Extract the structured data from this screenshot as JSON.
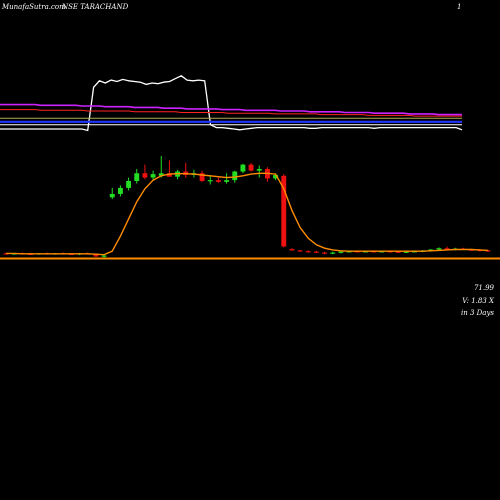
{
  "header": {
    "left": "MunafaSutra.com",
    "mid": "NSE TARACHAND",
    "right": "1"
  },
  "info": {
    "price": "71.99",
    "volume": "V: 1.83 X",
    "period": "in 3 Days"
  },
  "colors": {
    "background": "#000000",
    "up_candle": "#22dd22",
    "down_candle": "#ee1111",
    "ma_line": "#ff8c00",
    "support_line": "#ff8c00",
    "indicator_white": "#ffffff",
    "indicator_blue": "#2233ff",
    "indicator_purple": "#cc22ff",
    "indicator_red": "#ff2222",
    "indicator_olive": "#aaaa55"
  },
  "chart_data": [
    {
      "type": "line",
      "title": "",
      "xlabel": "",
      "ylabel": "",
      "grid": false,
      "x_count": 80,
      "series": [
        {
          "values": [
            0.18,
            0.18,
            0.18,
            0.18,
            0.18,
            0.18,
            0.18,
            0.18,
            0.18,
            0.18,
            0.18,
            0.18,
            0.18,
            0.18,
            0.18,
            0.16,
            0.76,
            0.85,
            0.82,
            0.86,
            0.84,
            0.87,
            0.85,
            0.84,
            0.83,
            0.8,
            0.82,
            0.81,
            0.83,
            0.84,
            0.88,
            0.92,
            0.86,
            0.85,
            0.86,
            0.85,
            0.24,
            0.2,
            0.2,
            0.19,
            0.18,
            0.17,
            0.18,
            0.19,
            0.2,
            0.2,
            0.2,
            0.2,
            0.2,
            0.2,
            0.2,
            0.2,
            0.2,
            0.19,
            0.19,
            0.2,
            0.2,
            0.2,
            0.2,
            0.2,
            0.2,
            0.2,
            0.2,
            0.2,
            0.19,
            0.2,
            0.2,
            0.2,
            0.2,
            0.2,
            0.2,
            0.2,
            0.2,
            0.2,
            0.2,
            0.2,
            0.2,
            0.2,
            0.2,
            0.17
          ]
        },
        {
          "values": [
            0.52,
            0.52,
            0.52,
            0.52,
            0.52,
            0.52,
            0.52,
            0.51,
            0.51,
            0.51,
            0.51,
            0.51,
            0.51,
            0.51,
            0.5,
            0.5,
            0.5,
            0.5,
            0.49,
            0.49,
            0.49,
            0.49,
            0.49,
            0.48,
            0.48,
            0.48,
            0.48,
            0.48,
            0.47,
            0.47,
            0.47,
            0.47,
            0.46,
            0.46,
            0.46,
            0.46,
            0.46,
            0.46,
            0.45,
            0.45,
            0.45,
            0.45,
            0.44,
            0.44,
            0.44,
            0.44,
            0.44,
            0.44,
            0.43,
            0.43,
            0.43,
            0.43,
            0.43,
            0.42,
            0.42,
            0.42,
            0.42,
            0.42,
            0.42,
            0.41,
            0.41,
            0.41,
            0.41,
            0.41,
            0.4,
            0.4,
            0.4,
            0.4,
            0.4,
            0.4,
            0.39,
            0.39,
            0.39,
            0.39,
            0.39,
            0.38,
            0.38,
            0.38,
            0.38,
            0.38
          ]
        },
        {
          "values": [
            0.45,
            0.45,
            0.45,
            0.45,
            0.45,
            0.45,
            0.45,
            0.44,
            0.44,
            0.44,
            0.44,
            0.44,
            0.44,
            0.44,
            0.44,
            0.43,
            0.43,
            0.43,
            0.43,
            0.43,
            0.43,
            0.43,
            0.43,
            0.42,
            0.42,
            0.42,
            0.42,
            0.42,
            0.42,
            0.42,
            0.42,
            0.41,
            0.41,
            0.41,
            0.41,
            0.41,
            0.41,
            0.41,
            0.41,
            0.4,
            0.4,
            0.4,
            0.4,
            0.4,
            0.4,
            0.4,
            0.4,
            0.39,
            0.39,
            0.39,
            0.39,
            0.39,
            0.39,
            0.39,
            0.39,
            0.38,
            0.38,
            0.38,
            0.38,
            0.38,
            0.38,
            0.38,
            0.38,
            0.37,
            0.37,
            0.37,
            0.37,
            0.37,
            0.37,
            0.37,
            0.37,
            0.36,
            0.36,
            0.36,
            0.36,
            0.36,
            0.36,
            0.36,
            0.36,
            0.36
          ]
        },
        {
          "values": [
            0.33,
            0.33,
            0.33,
            0.33,
            0.33,
            0.33,
            0.33,
            0.33,
            0.33,
            0.33,
            0.33,
            0.33,
            0.33,
            0.33,
            0.33,
            0.33,
            0.33,
            0.33,
            0.33,
            0.33,
            0.33,
            0.33,
            0.33,
            0.33,
            0.33,
            0.33,
            0.33,
            0.33,
            0.33,
            0.33,
            0.33,
            0.33,
            0.33,
            0.33,
            0.33,
            0.33,
            0.33,
            0.33,
            0.33,
            0.33,
            0.33,
            0.33,
            0.33,
            0.33,
            0.33,
            0.33,
            0.33,
            0.33,
            0.33,
            0.33,
            0.33,
            0.33,
            0.33,
            0.33,
            0.33,
            0.33,
            0.33,
            0.33,
            0.33,
            0.33,
            0.33,
            0.33,
            0.33,
            0.33,
            0.33,
            0.33,
            0.33,
            0.33,
            0.33,
            0.33,
            0.33,
            0.33,
            0.33,
            0.33,
            0.33,
            0.33,
            0.33,
            0.33,
            0.33,
            0.33
          ]
        },
        {
          "values": [
            0.28,
            0.28,
            0.28,
            0.28,
            0.28,
            0.28,
            0.28,
            0.28,
            0.28,
            0.28,
            0.28,
            0.28,
            0.28,
            0.28,
            0.28,
            0.28,
            0.28,
            0.28,
            0.28,
            0.28,
            0.28,
            0.28,
            0.28,
            0.28,
            0.28,
            0.28,
            0.28,
            0.28,
            0.28,
            0.28,
            0.28,
            0.28,
            0.28,
            0.28,
            0.28,
            0.28,
            0.28,
            0.28,
            0.28,
            0.28,
            0.28,
            0.28,
            0.28,
            0.28,
            0.28,
            0.28,
            0.28,
            0.28,
            0.28,
            0.28,
            0.28,
            0.28,
            0.28,
            0.28,
            0.28,
            0.28,
            0.28,
            0.28,
            0.28,
            0.28,
            0.28,
            0.28,
            0.28,
            0.28,
            0.28,
            0.28,
            0.28,
            0.28,
            0.28,
            0.28,
            0.28,
            0.28,
            0.28,
            0.28,
            0.28,
            0.28,
            0.28,
            0.28,
            0.28,
            0.28
          ]
        },
        {
          "values": [
            0.24,
            0.24,
            0.24,
            0.24,
            0.24,
            0.24,
            0.24,
            0.24,
            0.24,
            0.24,
            0.24,
            0.24,
            0.24,
            0.24,
            0.24,
            0.24,
            0.24,
            0.24,
            0.24,
            0.24,
            0.24,
            0.24,
            0.24,
            0.24,
            0.24,
            0.24,
            0.24,
            0.24,
            0.24,
            0.24,
            0.24,
            0.24,
            0.24,
            0.24,
            0.24,
            0.24,
            0.24,
            0.24,
            0.24,
            0.24,
            0.24,
            0.24,
            0.24,
            0.24,
            0.24,
            0.24,
            0.24,
            0.24,
            0.24,
            0.24,
            0.24,
            0.24,
            0.24,
            0.24,
            0.24,
            0.24,
            0.24,
            0.24,
            0.24,
            0.24,
            0.24,
            0.24,
            0.24,
            0.24,
            0.24,
            0.24,
            0.24,
            0.24,
            0.24,
            0.24,
            0.24,
            0.24,
            0.24,
            0.24,
            0.24,
            0.24,
            0.24,
            0.24,
            0.24,
            0.24
          ]
        }
      ]
    },
    {
      "type": "candlestick",
      "title": "",
      "xlabel": "",
      "ylabel": "",
      "grid": false,
      "ylim": [
        0,
        260
      ],
      "candles": [
        {
          "o": 20,
          "h": 22,
          "l": 18,
          "c": 19
        },
        {
          "o": 19,
          "h": 21,
          "l": 17,
          "c": 20
        },
        {
          "o": 20,
          "h": 22,
          "l": 18,
          "c": 19
        },
        {
          "o": 19,
          "h": 21,
          "l": 17,
          "c": 18
        },
        {
          "o": 18,
          "h": 21,
          "l": 17,
          "c": 20
        },
        {
          "o": 20,
          "h": 22,
          "l": 18,
          "c": 19
        },
        {
          "o": 19,
          "h": 21,
          "l": 17,
          "c": 20
        },
        {
          "o": 20,
          "h": 22,
          "l": 18,
          "c": 19
        },
        {
          "o": 19,
          "h": 20,
          "l": 17,
          "c": 18
        },
        {
          "o": 18,
          "h": 21,
          "l": 16,
          "c": 20
        },
        {
          "o": 20,
          "h": 22,
          "l": 18,
          "c": 19
        },
        {
          "o": 19,
          "h": 20,
          "l": 12,
          "c": 13
        },
        {
          "o": 14,
          "h": 16,
          "l": 10,
          "c": 15
        },
        {
          "o": 150,
          "h": 172,
          "l": 146,
          "c": 158
        },
        {
          "o": 158,
          "h": 178,
          "l": 152,
          "c": 172
        },
        {
          "o": 172,
          "h": 196,
          "l": 166,
          "c": 188
        },
        {
          "o": 188,
          "h": 216,
          "l": 182,
          "c": 206
        },
        {
          "o": 206,
          "h": 226,
          "l": 192,
          "c": 196
        },
        {
          "o": 196,
          "h": 212,
          "l": 190,
          "c": 204
        },
        {
          "o": 200,
          "h": 246,
          "l": 196,
          "c": 206
        },
        {
          "o": 206,
          "h": 236,
          "l": 198,
          "c": 198
        },
        {
          "o": 198,
          "h": 214,
          "l": 192,
          "c": 210
        },
        {
          "o": 210,
          "h": 230,
          "l": 196,
          "c": 202
        },
        {
          "o": 202,
          "h": 214,
          "l": 196,
          "c": 206
        },
        {
          "o": 206,
          "h": 212,
          "l": 186,
          "c": 188
        },
        {
          "o": 188,
          "h": 202,
          "l": 180,
          "c": 190
        },
        {
          "o": 190,
          "h": 196,
          "l": 184,
          "c": 186
        },
        {
          "o": 186,
          "h": 206,
          "l": 182,
          "c": 190
        },
        {
          "o": 190,
          "h": 212,
          "l": 184,
          "c": 210
        },
        {
          "o": 210,
          "h": 228,
          "l": 206,
          "c": 226
        },
        {
          "o": 226,
          "h": 230,
          "l": 210,
          "c": 212
        },
        {
          "o": 212,
          "h": 224,
          "l": 196,
          "c": 216
        },
        {
          "o": 216,
          "h": 220,
          "l": 186,
          "c": 194
        },
        {
          "o": 194,
          "h": 206,
          "l": 190,
          "c": 202
        },
        {
          "o": 200,
          "h": 204,
          "l": 34,
          "c": 36
        },
        {
          "o": 30,
          "h": 32,
          "l": 26,
          "c": 27
        },
        {
          "o": 27,
          "h": 28,
          "l": 24,
          "c": 25
        },
        {
          "o": 25,
          "h": 27,
          "l": 22,
          "c": 24
        },
        {
          "o": 24,
          "h": 26,
          "l": 21,
          "c": 22
        },
        {
          "o": 22,
          "h": 24,
          "l": 18,
          "c": 20
        },
        {
          "o": 20,
          "h": 24,
          "l": 18,
          "c": 22
        },
        {
          "o": 22,
          "h": 26,
          "l": 20,
          "c": 24
        },
        {
          "o": 24,
          "h": 27,
          "l": 22,
          "c": 25
        },
        {
          "o": 25,
          "h": 27,
          "l": 22,
          "c": 24
        },
        {
          "o": 24,
          "h": 26,
          "l": 22,
          "c": 25
        },
        {
          "o": 25,
          "h": 27,
          "l": 23,
          "c": 24
        },
        {
          "o": 24,
          "h": 26,
          "l": 22,
          "c": 25
        },
        {
          "o": 25,
          "h": 27,
          "l": 22,
          "c": 24
        },
        {
          "o": 24,
          "h": 26,
          "l": 22,
          "c": 23
        },
        {
          "o": 23,
          "h": 26,
          "l": 21,
          "c": 24
        },
        {
          "o": 24,
          "h": 27,
          "l": 22,
          "c": 25
        },
        {
          "o": 25,
          "h": 28,
          "l": 23,
          "c": 26
        },
        {
          "o": 26,
          "h": 30,
          "l": 24,
          "c": 29
        },
        {
          "o": 29,
          "h": 34,
          "l": 27,
          "c": 32
        },
        {
          "o": 32,
          "h": 36,
          "l": 28,
          "c": 30
        },
        {
          "o": 30,
          "h": 33,
          "l": 27,
          "c": 31
        },
        {
          "o": 31,
          "h": 33,
          "l": 28,
          "c": 29
        },
        {
          "o": 29,
          "h": 31,
          "l": 26,
          "c": 28
        },
        {
          "o": 28,
          "h": 30,
          "l": 25,
          "c": 27
        },
        {
          "o": 27,
          "h": 29,
          "l": 24,
          "c": 26
        }
      ],
      "ma": [
        20,
        20,
        19,
        19,
        19,
        19,
        19,
        19,
        19,
        19,
        19,
        18,
        17,
        25,
        60,
        100,
        140,
        170,
        190,
        200,
        204,
        205,
        205,
        204,
        202,
        200,
        198,
        196,
        197,
        200,
        204,
        206,
        206,
        204,
        170,
        120,
        80,
        55,
        40,
        32,
        28,
        26,
        25,
        25,
        25,
        25,
        25,
        25,
        25,
        25,
        25,
        25,
        26,
        27,
        28,
        29,
        29,
        29,
        28,
        27
      ],
      "support": 8
    }
  ]
}
